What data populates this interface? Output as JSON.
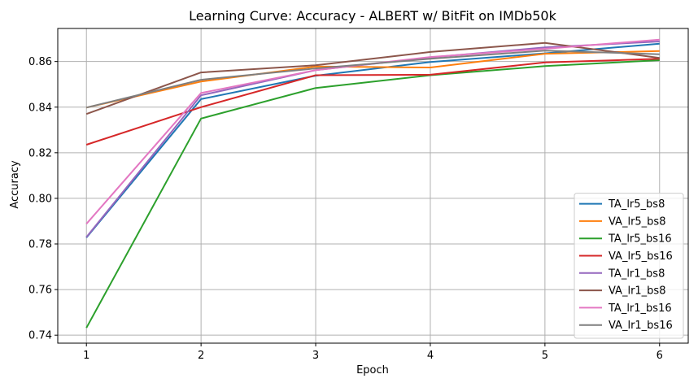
{
  "chart_data": {
    "type": "line",
    "title": "Learning Curve: Accuracy - ALBERT w/ BitFit on IMDb50k",
    "xlabel": "Epoch",
    "ylabel": "Accuracy",
    "x": [
      1,
      2,
      3,
      4,
      5,
      6
    ],
    "x_ticks": [
      "1",
      "2",
      "3",
      "4",
      "5",
      "6"
    ],
    "y_ticks": [
      "0.74",
      "0.76",
      "0.78",
      "0.80",
      "0.82",
      "0.84",
      "0.86"
    ],
    "y_tick_values": [
      0.74,
      0.76,
      0.78,
      0.8,
      0.82,
      0.84,
      0.86
    ],
    "xlim": [
      0.75,
      6.25
    ],
    "ylim": [
      0.7365,
      0.8745
    ],
    "grid": true,
    "legend_position": "lower-right",
    "series": [
      {
        "name": "TA_lr5_bs8",
        "color": "#1f77b4",
        "values": [
          0.7828,
          0.8435,
          0.8538,
          0.8598,
          0.8636,
          0.8678
        ]
      },
      {
        "name": "VA_lr5_bs8",
        "color": "#ff7f0e",
        "values": [
          0.8398,
          0.8512,
          0.8578,
          0.8574,
          0.8634,
          0.8646
        ]
      },
      {
        "name": "TA_lr5_bs16",
        "color": "#2ca02c",
        "values": [
          0.7432,
          0.835,
          0.8484,
          0.854,
          0.858,
          0.8606
        ]
      },
      {
        "name": "VA_lr5_bs16",
        "color": "#d62728",
        "values": [
          0.8235,
          0.84,
          0.854,
          0.8542,
          0.8596,
          0.8612
        ]
      },
      {
        "name": "TA_lr1_bs8",
        "color": "#9467bd",
        "values": [
          0.783,
          0.8452,
          0.8562,
          0.8618,
          0.8662,
          0.8688
        ]
      },
      {
        "name": "VA_lr1_bs8",
        "color": "#8c564b",
        "values": [
          0.837,
          0.8552,
          0.8584,
          0.8642,
          0.8682,
          0.8616
        ]
      },
      {
        "name": "TA_lr1_bs16",
        "color": "#e377c2",
        "values": [
          0.7888,
          0.8462,
          0.8562,
          0.862,
          0.8656,
          0.8696
        ]
      },
      {
        "name": "VA_lr1_bs16",
        "color": "#7f7f7f",
        "values": [
          0.8398,
          0.852,
          0.857,
          0.8612,
          0.8648,
          0.8632
        ]
      }
    ]
  }
}
